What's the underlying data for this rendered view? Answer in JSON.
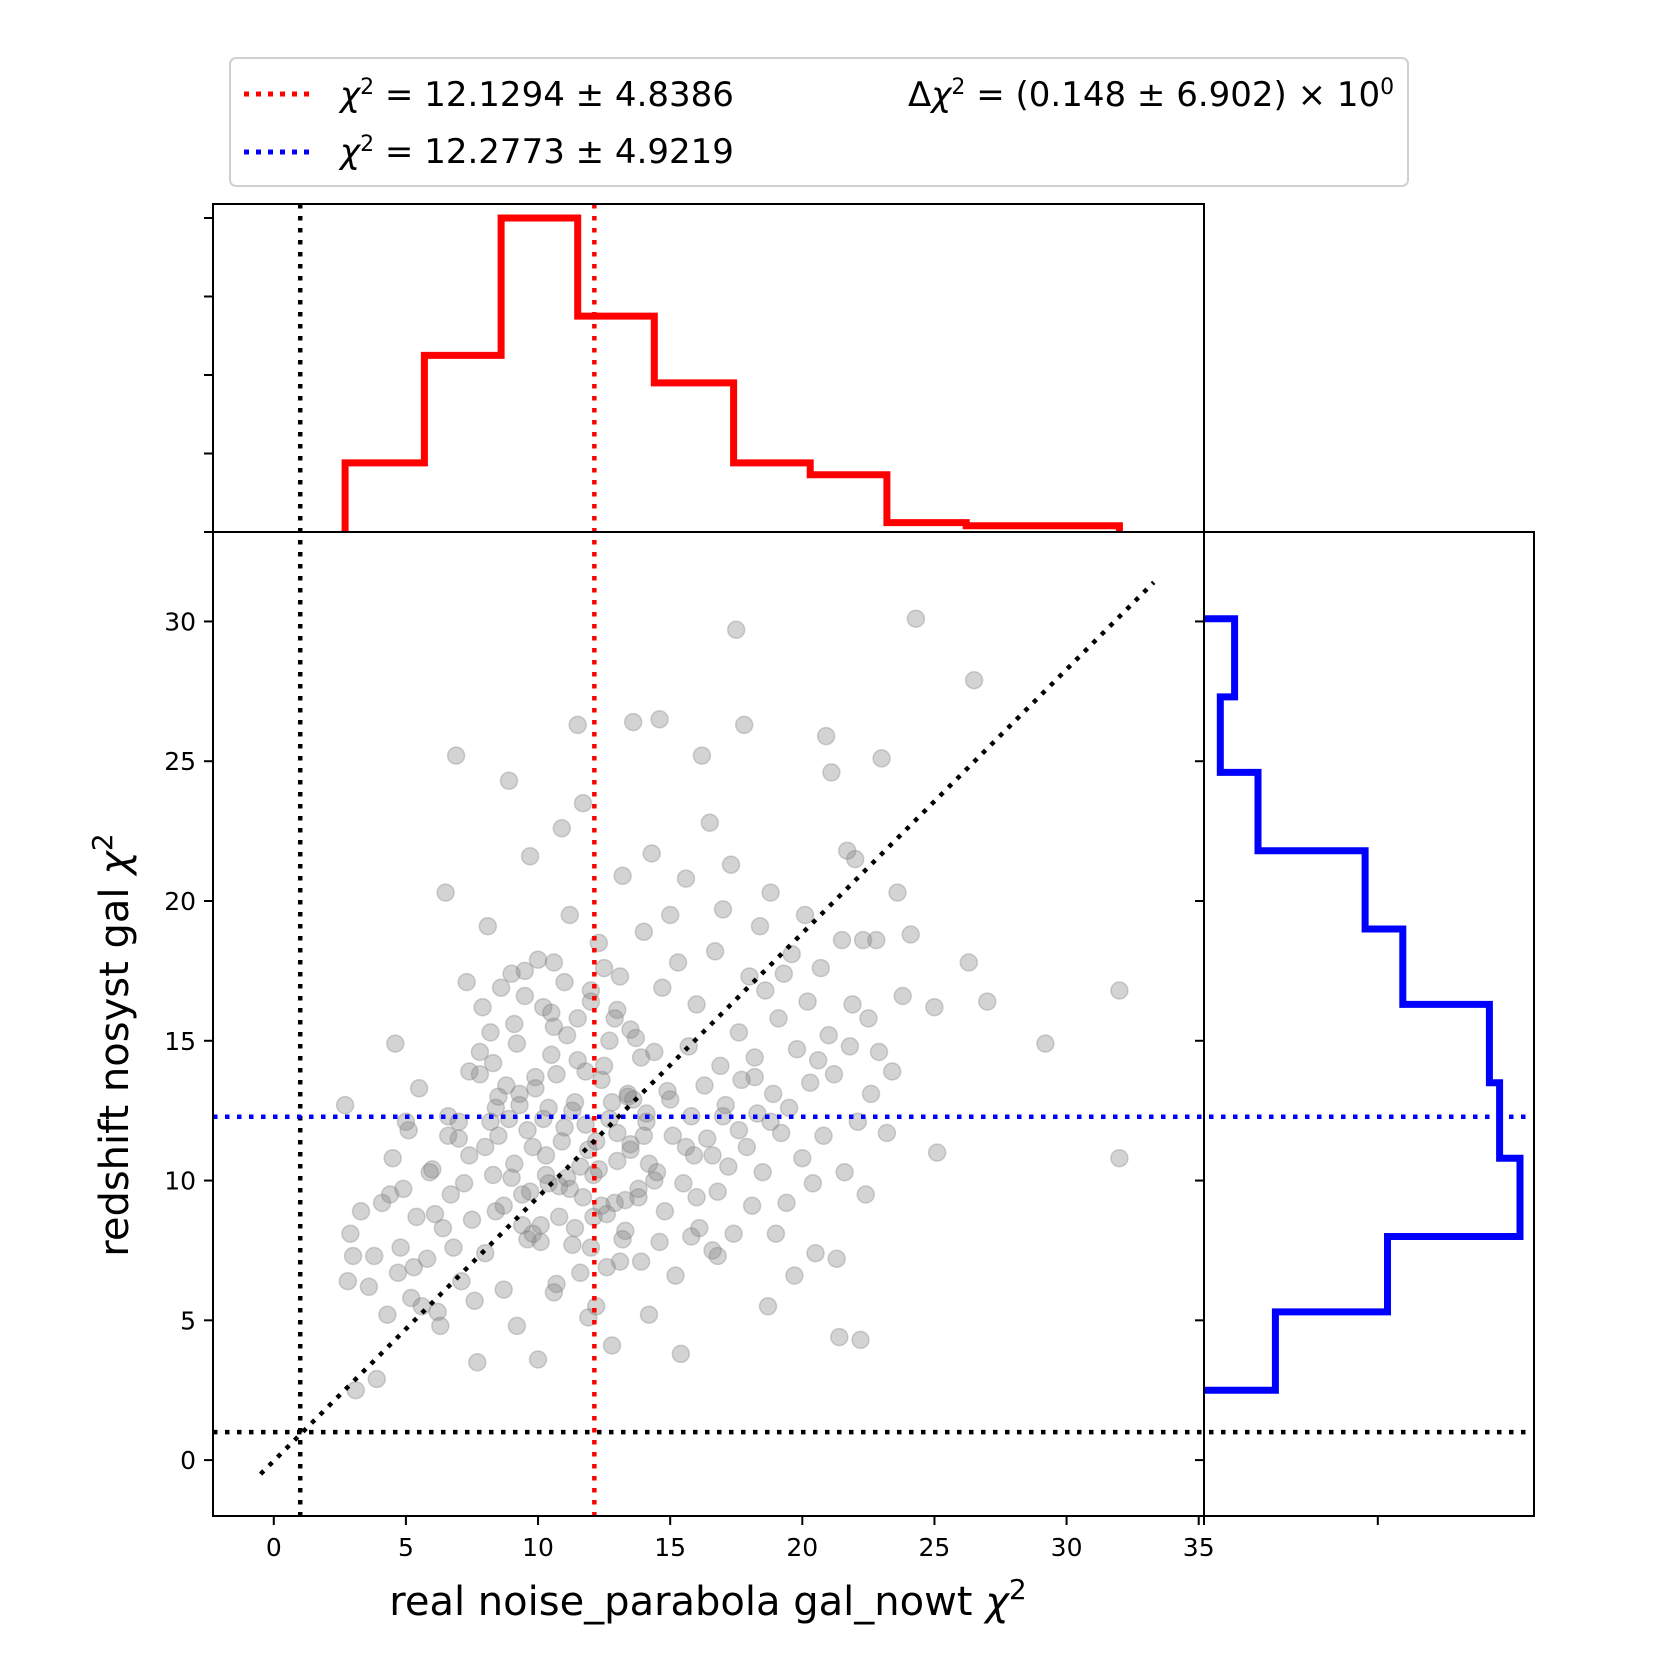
{
  "chart_data": {
    "type": "scatter",
    "title": "",
    "xlabel": "real noise_parabola gal_nowt",
    "ylabel": "redshift nosyst gal",
    "axis_symbol": "χ",
    "axis_symbol_sup": "2",
    "xlim": [
      -2.3,
      35.2
    ],
    "ylim": [
      -2.0,
      33.2
    ],
    "xticks": [
      0,
      5,
      10,
      15,
      20,
      25,
      30,
      35
    ],
    "yticks": [
      0,
      5,
      10,
      15,
      20,
      25,
      30
    ],
    "grid": false,
    "legend_position": "top",
    "colors": {
      "red": "#ff0000",
      "blue": "#0000ff",
      "reference": "#000000",
      "points": "#808080"
    },
    "legend": {
      "entries": [
        {
          "symbol": "χ",
          "sup": "2",
          "text": " = 12.1294 ± 4.8386",
          "color": "#ff0000"
        },
        {
          "symbol": "χ",
          "sup": "2",
          "text": " = 12.2773 ± 4.9219",
          "color": "#0000ff"
        }
      ],
      "delta": {
        "prefix": "Δ",
        "symbol": "χ",
        "sup": "2",
        "text": " = (0.148 ± 6.902) × 10",
        "exp": "0"
      }
    },
    "reference_lines": {
      "vertical_dof": 1,
      "horizontal_dof": 1,
      "mean_x": 12.13,
      "mean_y": 12.28,
      "diagonal": [
        [
          -0.5,
          -0.5
        ],
        [
          33.3,
          31.4
        ]
      ]
    },
    "x_histogram": {
      "edges": [
        2.7,
        5.7,
        8.6,
        11.5,
        14.4,
        17.4,
        20.3,
        23.2,
        26.2,
        29.1,
        32.0
      ],
      "counts": [
        88,
        225,
        400,
        275,
        190,
        88,
        73,
        12,
        8,
        8
      ]
    },
    "y_histogram": {
      "edges": [
        2.5,
        5.3,
        8.0,
        10.8,
        13.5,
        16.3,
        19.0,
        21.8,
        24.6,
        27.3,
        30.1
      ],
      "counts": [
        70,
        180,
        310,
        290,
        280,
        195,
        158,
        53,
        16,
        30
      ]
    },
    "points": [
      [
        2.7,
        12.7
      ],
      [
        2.8,
        6.4
      ],
      [
        2.9,
        8.1
      ],
      [
        3.0,
        7.3
      ],
      [
        3.1,
        2.5
      ],
      [
        3.3,
        8.9
      ],
      [
        3.6,
        6.2
      ],
      [
        3.8,
        7.3
      ],
      [
        3.9,
        2.9
      ],
      [
        4.1,
        9.2
      ],
      [
        4.3,
        5.2
      ],
      [
        4.4,
        9.5
      ],
      [
        4.5,
        10.8
      ],
      [
        4.6,
        14.9
      ],
      [
        4.7,
        6.7
      ],
      [
        4.8,
        7.6
      ],
      [
        4.9,
        9.7
      ],
      [
        5.0,
        12.1
      ],
      [
        5.1,
        11.8
      ],
      [
        5.2,
        5.8
      ],
      [
        5.3,
        6.9
      ],
      [
        5.4,
        8.7
      ],
      [
        5.5,
        13.3
      ],
      [
        5.6,
        5.5
      ],
      [
        5.8,
        7.2
      ],
      [
        5.9,
        10.3
      ],
      [
        6.0,
        10.4
      ],
      [
        6.1,
        8.8
      ],
      [
        6.2,
        5.3
      ],
      [
        6.3,
        4.8
      ],
      [
        6.4,
        8.3
      ],
      [
        6.5,
        20.3
      ],
      [
        6.6,
        12.3
      ],
      [
        6.7,
        9.5
      ],
      [
        6.8,
        7.6
      ],
      [
        6.9,
        25.2
      ],
      [
        7.0,
        11.5
      ],
      [
        7.1,
        6.4
      ],
      [
        7.2,
        9.9
      ],
      [
        7.3,
        17.1
      ],
      [
        7.4,
        10.9
      ],
      [
        7.5,
        8.6
      ],
      [
        7.6,
        5.7
      ],
      [
        7.7,
        3.5
      ],
      [
        7.8,
        13.8
      ],
      [
        7.9,
        16.2
      ],
      [
        8.0,
        7.4
      ],
      [
        8.1,
        19.1
      ],
      [
        8.2,
        12.1
      ],
      [
        8.3,
        14.2
      ],
      [
        8.4,
        8.9
      ],
      [
        8.5,
        11.6
      ],
      [
        8.6,
        16.9
      ],
      [
        8.7,
        6.1
      ],
      [
        8.8,
        13.4
      ],
      [
        8.9,
        24.3
      ],
      [
        9.0,
        10.1
      ],
      [
        9.1,
        15.6
      ],
      [
        9.2,
        4.8
      ],
      [
        9.3,
        12.7
      ],
      [
        9.4,
        9.5
      ],
      [
        9.5,
        17.5
      ],
      [
        9.6,
        7.9
      ],
      [
        9.7,
        21.6
      ],
      [
        9.8,
        11.2
      ],
      [
        9.9,
        13.7
      ],
      [
        10.0,
        3.6
      ],
      [
        10.1,
        8.4
      ],
      [
        10.2,
        16.2
      ],
      [
        10.3,
        10.2
      ],
      [
        10.4,
        12.6
      ],
      [
        10.5,
        14.5
      ],
      [
        10.6,
        17.8
      ],
      [
        10.7,
        6.3
      ],
      [
        10.8,
        9.8
      ],
      [
        10.9,
        22.6
      ],
      [
        11.0,
        11.9
      ],
      [
        11.1,
        15.2
      ],
      [
        11.2,
        19.5
      ],
      [
        11.3,
        7.7
      ],
      [
        11.4,
        12.8
      ],
      [
        11.5,
        26.3
      ],
      [
        11.6,
        10.5
      ],
      [
        11.7,
        23.5
      ],
      [
        11.8,
        13.9
      ],
      [
        11.9,
        5.1
      ],
      [
        12.0,
        16.8
      ],
      [
        12.1,
        8.7
      ],
      [
        12.2,
        11.4
      ],
      [
        12.3,
        18.5
      ],
      [
        12.4,
        9.1
      ],
      [
        12.5,
        14.1
      ],
      [
        12.6,
        6.9
      ],
      [
        12.7,
        12.2
      ],
      [
        12.8,
        4.1
      ],
      [
        12.9,
        15.8
      ],
      [
        13.0,
        10.7
      ],
      [
        13.1,
        17.3
      ],
      [
        13.2,
        20.9
      ],
      [
        13.3,
        8.2
      ],
      [
        13.4,
        13.1
      ],
      [
        13.5,
        11.1
      ],
      [
        13.6,
        26.4
      ],
      [
        13.7,
        15.1
      ],
      [
        13.8,
        9.4
      ],
      [
        13.9,
        7.1
      ],
      [
        14.0,
        18.9
      ],
      [
        14.1,
        12.4
      ],
      [
        14.2,
        5.2
      ],
      [
        14.3,
        21.7
      ],
      [
        14.4,
        14.6
      ],
      [
        14.5,
        10.3
      ],
      [
        14.6,
        26.5
      ],
      [
        14.7,
        16.9
      ],
      [
        14.8,
        8.9
      ],
      [
        14.9,
        13.2
      ],
      [
        15.0,
        19.5
      ],
      [
        15.1,
        11.6
      ],
      [
        15.2,
        6.6
      ],
      [
        15.3,
        17.8
      ],
      [
        15.4,
        3.8
      ],
      [
        15.5,
        9.9
      ],
      [
        15.6,
        20.8
      ],
      [
        15.7,
        14.8
      ],
      [
        15.8,
        12.3
      ],
      [
        15.9,
        10.9
      ],
      [
        16.0,
        16.3
      ],
      [
        16.1,
        8.3
      ],
      [
        16.2,
        25.2
      ],
      [
        16.3,
        13.4
      ],
      [
        16.4,
        11.5
      ],
      [
        16.5,
        22.8
      ],
      [
        16.6,
        7.5
      ],
      [
        16.7,
        18.2
      ],
      [
        16.8,
        9.6
      ],
      [
        16.9,
        14.1
      ],
      [
        17.0,
        19.7
      ],
      [
        17.1,
        12.7
      ],
      [
        17.2,
        10.5
      ],
      [
        17.3,
        21.3
      ],
      [
        17.4,
        8.1
      ],
      [
        17.5,
        29.7
      ],
      [
        17.6,
        15.3
      ],
      [
        17.7,
        13.6
      ],
      [
        17.8,
        26.3
      ],
      [
        17.9,
        11.2
      ],
      [
        18.0,
        17.3
      ],
      [
        18.1,
        9.1
      ],
      [
        18.2,
        14.4
      ],
      [
        18.3,
        12.4
      ],
      [
        18.4,
        19.1
      ],
      [
        18.5,
        10.3
      ],
      [
        18.6,
        16.8
      ],
      [
        18.7,
        5.5
      ],
      [
        18.8,
        20.3
      ],
      [
        18.9,
        13.1
      ],
      [
        19.0,
        8.1
      ],
      [
        19.1,
        15.8
      ],
      [
        19.2,
        11.7
      ],
      [
        19.3,
        17.4
      ],
      [
        19.4,
        9.2
      ],
      [
        19.5,
        12.6
      ],
      [
        19.6,
        18.1
      ],
      [
        19.7,
        6.6
      ],
      [
        19.8,
        14.7
      ],
      [
        20.0,
        10.8
      ],
      [
        20.1,
        19.5
      ],
      [
        20.2,
        16.4
      ],
      [
        20.3,
        13.5
      ],
      [
        20.4,
        9.9
      ],
      [
        20.5,
        7.4
      ],
      [
        20.6,
        14.3
      ],
      [
        20.7,
        17.6
      ],
      [
        20.8,
        11.6
      ],
      [
        20.9,
        25.9
      ],
      [
        21.0,
        15.2
      ],
      [
        21.1,
        24.6
      ],
      [
        21.2,
        13.8
      ],
      [
        21.3,
        7.2
      ],
      [
        21.4,
        4.4
      ],
      [
        21.5,
        18.6
      ],
      [
        21.6,
        10.3
      ],
      [
        21.7,
        21.8
      ],
      [
        21.8,
        14.8
      ],
      [
        21.9,
        16.3
      ],
      [
        22.0,
        21.5
      ],
      [
        22.1,
        12.1
      ],
      [
        22.2,
        4.3
      ],
      [
        22.3,
        18.6
      ],
      [
        22.4,
        9.5
      ],
      [
        22.5,
        15.8
      ],
      [
        22.6,
        13.1
      ],
      [
        22.8,
        18.6
      ],
      [
        22.9,
        14.6
      ],
      [
        23.0,
        25.1
      ],
      [
        23.2,
        11.7
      ],
      [
        23.4,
        13.9
      ],
      [
        23.6,
        20.3
      ],
      [
        23.8,
        16.6
      ],
      [
        24.1,
        18.8
      ],
      [
        24.3,
        30.1
      ],
      [
        25.0,
        16.2
      ],
      [
        25.1,
        11.0
      ],
      [
        26.3,
        17.8
      ],
      [
        26.5,
        27.9
      ],
      [
        27.0,
        16.4
      ],
      [
        29.2,
        14.9
      ],
      [
        32.0,
        16.8
      ],
      [
        32.0,
        10.8
      ],
      [
        7.4,
        13.9
      ],
      [
        7.8,
        14.6
      ],
      [
        8.2,
        15.3
      ],
      [
        8.5,
        13.0
      ],
      [
        8.9,
        12.2
      ],
      [
        9.2,
        14.9
      ],
      [
        9.6,
        11.8
      ],
      [
        9.9,
        13.3
      ],
      [
        10.3,
        10.9
      ],
      [
        10.6,
        15.5
      ],
      [
        10.9,
        11.4
      ],
      [
        11.2,
        9.7
      ],
      [
        11.5,
        14.3
      ],
      [
        11.8,
        12.0
      ],
      [
        12.1,
        10.2
      ],
      [
        12.4,
        13.6
      ],
      [
        12.7,
        15.0
      ],
      [
        13.0,
        11.7
      ],
      [
        13.3,
        9.3
      ],
      [
        13.6,
        12.9
      ],
      [
        13.9,
        14.4
      ],
      [
        14.2,
        10.6
      ],
      [
        8.3,
        10.2
      ],
      [
        8.7,
        9.1
      ],
      [
        9.1,
        10.6
      ],
      [
        9.4,
        8.4
      ],
      [
        9.7,
        9.6
      ],
      [
        10.1,
        7.8
      ],
      [
        10.4,
        9.9
      ],
      [
        10.8,
        8.7
      ],
      [
        11.1,
        10.1
      ],
      [
        11.4,
        8.3
      ],
      [
        11.7,
        9.4
      ],
      [
        12.0,
        7.6
      ],
      [
        12.3,
        10.4
      ],
      [
        12.6,
        8.8
      ],
      [
        12.9,
        9.2
      ],
      [
        13.2,
        7.9
      ],
      [
        13.5,
        11.3
      ],
      [
        13.8,
        9.7
      ],
      [
        14.1,
        12.1
      ],
      [
        14.4,
        10.0
      ],
      [
        9.0,
        17.4
      ],
      [
        9.5,
        16.6
      ],
      [
        10.0,
        17.9
      ],
      [
        10.5,
        16.0
      ],
      [
        11.0,
        17.1
      ],
      [
        11.5,
        15.8
      ],
      [
        12.0,
        16.4
      ],
      [
        12.5,
        17.6
      ],
      [
        13.0,
        16.1
      ],
      [
        13.5,
        15.4
      ],
      [
        8.0,
        11.2
      ],
      [
        8.4,
        12.6
      ],
      [
        9.3,
        13.1
      ],
      [
        10.2,
        12.2
      ],
      [
        10.7,
        13.8
      ],
      [
        11.3,
        12.5
      ],
      [
        11.9,
        11.1
      ],
      [
        12.8,
        12.8
      ],
      [
        13.4,
        13.0
      ],
      [
        14.0,
        11.6
      ],
      [
        15.0,
        12.9
      ],
      [
        15.6,
        11.2
      ],
      [
        16.0,
        9.4
      ],
      [
        16.6,
        10.9
      ],
      [
        17.0,
        12.3
      ],
      [
        17.6,
        11.8
      ],
      [
        18.2,
        13.7
      ],
      [
        18.8,
        12.1
      ],
      [
        9.8,
        8.1
      ],
      [
        10.6,
        6.0
      ],
      [
        11.6,
        6.7
      ],
      [
        12.2,
        5.5
      ],
      [
        13.1,
        7.1
      ],
      [
        14.6,
        7.8
      ],
      [
        15.8,
        8.0
      ],
      [
        16.8,
        7.3
      ],
      [
        7.0,
        12.1
      ],
      [
        6.6,
        11.6
      ]
    ]
  }
}
